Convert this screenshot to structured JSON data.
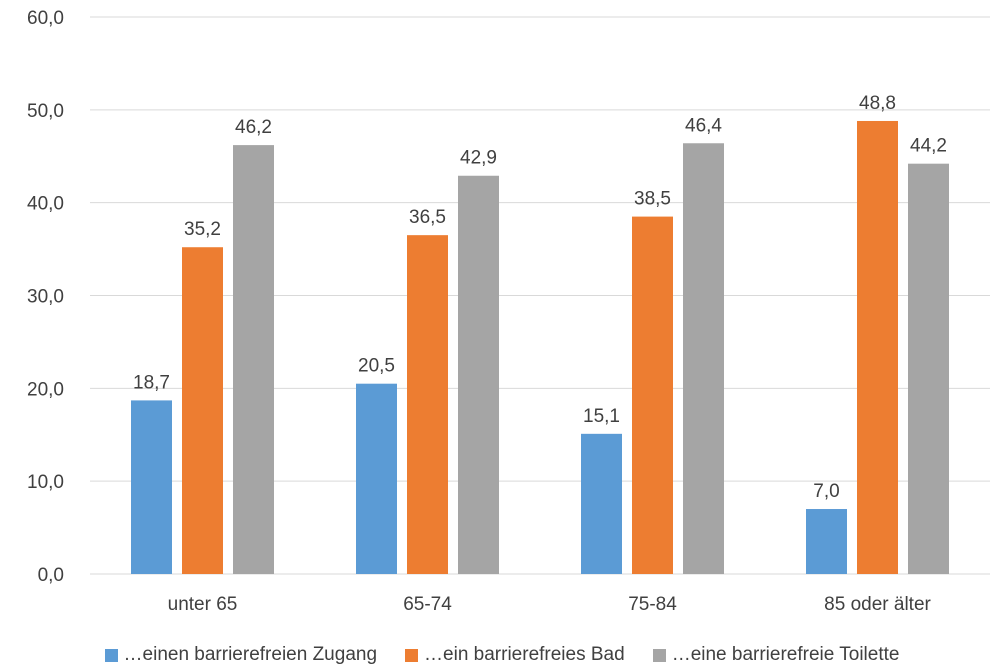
{
  "chart_data": {
    "type": "bar",
    "categories": [
      "unter 65",
      "65-74",
      "75-84",
      "85 oder älter"
    ],
    "series": [
      {
        "name": "…einen barrierefreien Zugang",
        "values": [
          18.7,
          20.5,
          15.1,
          7.0
        ],
        "color": "#5b9bd5"
      },
      {
        "name": "…ein barrierefreies Bad",
        "values": [
          35.2,
          36.5,
          38.5,
          48.8
        ],
        "color": "#ed7d31"
      },
      {
        "name": "…eine barrierefreie Toilette",
        "values": [
          46.2,
          42.9,
          46.4,
          44.2
        ],
        "color": "#a5a5a5"
      }
    ],
    "y_ticks": [
      "0,0",
      "10,0",
      "20,0",
      "30,0",
      "40,0",
      "50,0",
      "60,0"
    ],
    "data_labels": [
      [
        "18,7",
        "20,5",
        "15,1",
        "7,0"
      ],
      [
        "35,2",
        "36,5",
        "38,5",
        "48,8"
      ],
      [
        "46,2",
        "42,9",
        "46,4",
        "44,2"
      ]
    ],
    "ylim": [
      0,
      60
    ],
    "ystep": 10,
    "grid": true,
    "legend_position": "bottom"
  }
}
